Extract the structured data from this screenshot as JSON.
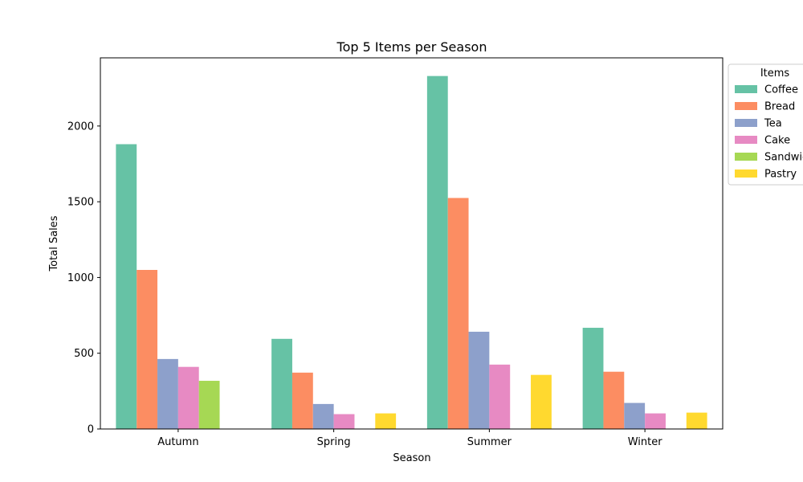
{
  "chart_data": {
    "type": "bar",
    "title": "Top 5 Items per Season",
    "xlabel": "Season",
    "ylabel": "Total Sales",
    "ylim": [
      0,
      2450
    ],
    "yticks": [
      0,
      500,
      1000,
      1500,
      2000
    ],
    "grid": false,
    "legend": {
      "title": "Items",
      "placement": "right-outside-top"
    },
    "categories": [
      "Autumn",
      "Spring",
      "Summer",
      "Winter"
    ],
    "series": [
      {
        "name": "Coffee",
        "color": "#66c2a5",
        "values": [
          1880,
          595,
          2330,
          668
        ]
      },
      {
        "name": "Bread",
        "color": "#fc8d62",
        "values": [
          1050,
          372,
          1525,
          378
        ]
      },
      {
        "name": "Tea",
        "color": "#8da0cb",
        "values": [
          462,
          165,
          642,
          172
        ]
      },
      {
        "name": "Cake",
        "color": "#e78ac3",
        "values": [
          410,
          98,
          425,
          103
        ]
      },
      {
        "name": "Sandwich",
        "color": "#a6d854",
        "values": [
          318,
          null,
          null,
          null
        ]
      },
      {
        "name": "Pastry",
        "color": "#ffd92f",
        "values": [
          null,
          103,
          357,
          108
        ]
      }
    ]
  }
}
